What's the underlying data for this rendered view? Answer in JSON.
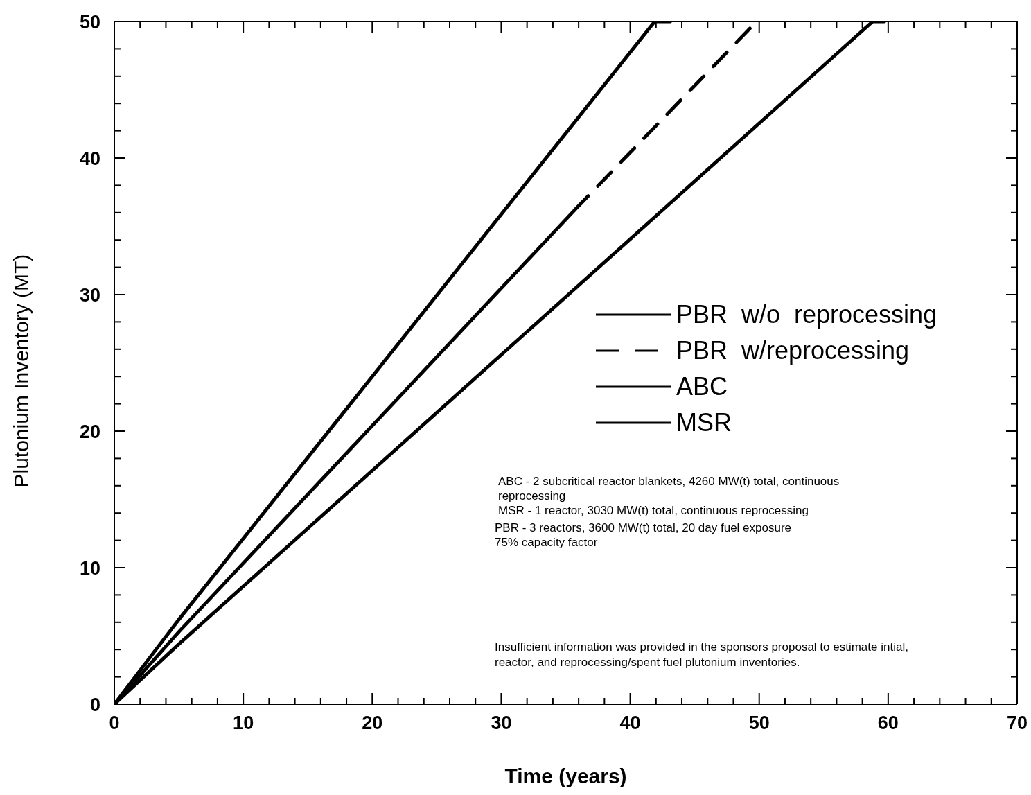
{
  "chart_data": {
    "type": "line",
    "xlabel": "Time (years)",
    "ylabel": "Plutonium Inventory (MT)",
    "series": [
      {
        "name": "PBR  w/o  reprocessing",
        "color": "#000000",
        "line_style": "solid",
        "x": [
          0,
          5,
          35.7
        ],
        "values": [
          0,
          5.3,
          36.2
        ]
      },
      {
        "name": "PBR  w/reprocessing",
        "color": "#000000",
        "line_style": "dashed",
        "x": [
          35.7,
          49.8
        ],
        "values": [
          36.2,
          50
        ]
      },
      {
        "name": "ABC",
        "color": "#000000",
        "line_style": "solid",
        "x": [
          0,
          5,
          41.9,
          43.1
        ],
        "values": [
          0,
          6.2,
          50,
          50
        ]
      },
      {
        "name": "MSR",
        "color": "#000000",
        "line_style": "solid",
        "x": [
          0,
          5,
          58.8,
          59.7
        ],
        "values": [
          0,
          4.4,
          50,
          50
        ]
      }
    ],
    "xlim": [
      0,
      70
    ],
    "xticks": [
      0,
      {
        "value": 2,
        "label": null
      },
      {
        "value": 4,
        "label": null
      },
      {
        "value": 6,
        "label": null
      },
      {
        "value": 8,
        "label": null
      },
      10,
      {
        "value": 12,
        "label": null
      },
      {
        "value": 14,
        "label": null
      },
      {
        "value": 16,
        "label": null
      },
      {
        "value": 18,
        "label": null
      },
      20,
      {
        "value": 22,
        "label": null
      },
      {
        "value": 24,
        "label": null
      },
      {
        "value": 26,
        "label": null
      },
      {
        "value": 28,
        "label": null
      },
      30,
      {
        "value": 32,
        "label": null
      },
      {
        "value": 34,
        "label": null
      },
      {
        "value": 36,
        "label": null
      },
      {
        "value": 38,
        "label": null
      },
      40,
      {
        "value": 42,
        "label": null
      },
      {
        "value": 44,
        "label": null
      },
      {
        "value": 46,
        "label": null
      },
      {
        "value": 48,
        "label": null
      },
      50,
      {
        "value": 52,
        "label": null
      },
      {
        "value": 54,
        "label": null
      },
      {
        "value": 56,
        "label": null
      },
      {
        "value": 58,
        "label": null
      },
      60,
      {
        "value": 62,
        "label": null
      },
      {
        "value": 64,
        "label": null
      },
      {
        "value": 66,
        "label": null
      },
      {
        "value": 68,
        "label": null
      },
      70
    ],
    "ylim": [
      0,
      50
    ],
    "yticks": [
      0,
      {
        "value": 2,
        "label": null
      },
      {
        "value": 4,
        "label": null
      },
      {
        "value": 6,
        "label": null
      },
      {
        "value": 8,
        "label": null
      },
      10,
      {
        "value": 12,
        "label": null
      },
      {
        "value": 14,
        "label": null
      },
      {
        "value": 16,
        "label": null
      },
      {
        "value": 18,
        "label": null
      },
      20,
      {
        "value": 22,
        "label": null
      },
      {
        "value": 24,
        "label": null
      },
      {
        "value": 26,
        "label": null
      },
      {
        "value": 28,
        "label": null
      },
      30,
      {
        "value": 32,
        "label": null
      },
      {
        "value": 34,
        "label": null
      },
      {
        "value": 36,
        "label": null
      },
      {
        "value": 38,
        "label": null
      },
      40,
      {
        "value": 42,
        "label": null
      },
      {
        "value": 44,
        "label": null
      },
      {
        "value": 46,
        "label": null
      },
      {
        "value": 48,
        "label": null
      },
      50
    ],
    "marker": "none",
    "legend": "right",
    "annotations": [
      "ABC - 2 subcritical reactor blankets, 4260 MW(t) total, continuous reprocessing",
      "MSR - 1 reactor, 3030 MW(t) total, continuous reprocessing",
      "PBR - 3 reactors, 3600 MW(t) total, 20 day fuel exposure",
      "75% capacity factor",
      "Insufficient information was provided in the sponsors proposal to estimate intial, reactor, and reprocessing/spent fuel plutonium inventories."
    ]
  }
}
